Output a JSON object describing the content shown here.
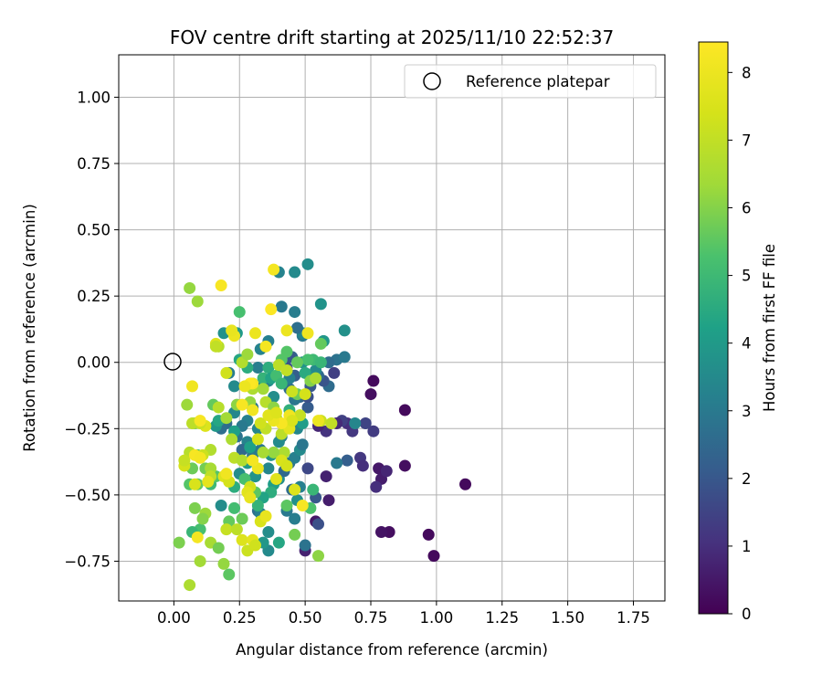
{
  "chart_data": {
    "type": "scatter",
    "title": "FOV centre drift starting at 2025/11/10 22:52:37",
    "xlabel": "Angular distance from reference (arcmin)",
    "ylabel": "Rotation from reference (arcmin)",
    "xlim": [
      -0.21,
      1.87
    ],
    "ylim": [
      -0.9,
      1.16
    ],
    "xticks": [
      "0.00",
      "0.25",
      "0.50",
      "0.75",
      "1.00",
      "1.25",
      "1.50",
      "1.75"
    ],
    "yticks": [
      "−0.75",
      "−0.50",
      "−0.25",
      "0.00",
      "0.25",
      "0.50",
      "0.75",
      "1.00"
    ],
    "grid": true,
    "legend": {
      "position": "top-right",
      "entries": [
        "Reference platepar"
      ]
    },
    "reference_point": {
      "x": 0.0,
      "y": 0.0,
      "marker": "open-circle"
    },
    "colorbar": {
      "label": "Hours from first FF file",
      "ticks": [
        "0",
        "1",
        "2",
        "3",
        "4",
        "5",
        "6",
        "7",
        "8"
      ],
      "range": [
        0,
        8.45
      ],
      "colormap": "viridis"
    },
    "points": [
      [
        0.88,
        -0.18,
        0.2
      ],
      [
        0.76,
        -0.07,
        0.2
      ],
      [
        0.75,
        -0.12,
        0.3
      ],
      [
        1.11,
        -0.46,
        0.2
      ],
      [
        0.97,
        -0.65,
        0.2
      ],
      [
        0.99,
        -0.73,
        0.2
      ],
      [
        0.82,
        -0.64,
        0.3
      ],
      [
        0.79,
        -0.64,
        0.4
      ],
      [
        0.88,
        -0.39,
        0.3
      ],
      [
        0.78,
        -0.4,
        0.5
      ],
      [
        0.79,
        -0.44,
        0.6
      ],
      [
        0.81,
        -0.41,
        0.8
      ],
      [
        0.77,
        -0.47,
        1.0
      ],
      [
        0.71,
        -0.36,
        1.2
      ],
      [
        0.72,
        -0.39,
        1.0
      ],
      [
        0.76,
        -0.26,
        1.3
      ],
      [
        0.73,
        -0.23,
        1.5
      ],
      [
        0.68,
        -0.26,
        1.2
      ],
      [
        0.66,
        -0.23,
        1.0
      ],
      [
        0.64,
        -0.22,
        1.4
      ],
      [
        0.62,
        -0.23,
        0.9
      ],
      [
        0.58,
        -0.26,
        1.1
      ],
      [
        0.55,
        -0.24,
        0.8
      ],
      [
        0.58,
        -0.43,
        0.7
      ],
      [
        0.59,
        -0.52,
        0.6
      ],
      [
        0.54,
        -0.6,
        0.5
      ],
      [
        0.5,
        -0.71,
        0.7
      ],
      [
        0.55,
        -0.61,
        1.8
      ],
      [
        0.54,
        -0.51,
        2.0
      ],
      [
        0.66,
        -0.37,
        2.2
      ],
      [
        0.62,
        -0.38,
        3.0
      ],
      [
        0.69,
        -0.23,
        3.4
      ],
      [
        0.51,
        -0.4,
        1.6
      ],
      [
        0.51,
        -0.17,
        2.1
      ],
      [
        0.48,
        -0.13,
        2.4
      ],
      [
        0.51,
        -0.13,
        1.8
      ],
      [
        0.52,
        -0.09,
        2.0
      ],
      [
        0.53,
        -0.06,
        2.3
      ],
      [
        0.59,
        -0.09,
        2.6
      ],
      [
        0.57,
        -0.07,
        1.9
      ],
      [
        0.61,
        -0.04,
        1.4
      ],
      [
        0.62,
        0.01,
        2.8
      ],
      [
        0.65,
        0.02,
        3.0
      ],
      [
        0.59,
        0.0,
        2.6
      ],
      [
        0.57,
        0.08,
        3.4
      ],
      [
        0.55,
        -0.05,
        2.5
      ],
      [
        0.54,
        -0.03,
        3.5
      ],
      [
        0.49,
        0.0,
        3.8
      ],
      [
        0.45,
        0.02,
        2.3
      ],
      [
        0.44,
        0.02,
        2.0
      ],
      [
        0.43,
        -0.02,
        1.8
      ],
      [
        0.46,
        -0.05,
        2.2
      ],
      [
        0.44,
        -0.1,
        2.6
      ],
      [
        0.46,
        -0.14,
        2.9
      ],
      [
        0.44,
        -0.06,
        3.2
      ],
      [
        0.49,
        0.1,
        3.0
      ],
      [
        0.49,
        0.11,
        3.4
      ],
      [
        0.47,
        0.13,
        2.7
      ],
      [
        0.46,
        0.19,
        3.1
      ],
      [
        0.41,
        0.21,
        3.0
      ],
      [
        0.4,
        0.34,
        3.3
      ],
      [
        0.46,
        0.34,
        3.5
      ],
      [
        0.51,
        0.37,
        3.6
      ],
      [
        0.56,
        0.22,
        3.8
      ],
      [
        0.57,
        0.08,
        3.9
      ],
      [
        0.65,
        0.12,
        3.7
      ],
      [
        0.36,
        0.08,
        3.2
      ],
      [
        0.33,
        0.05,
        3.3
      ],
      [
        0.32,
        -0.02,
        3.1
      ],
      [
        0.36,
        -0.07,
        3.5
      ],
      [
        0.38,
        -0.13,
        3.6
      ],
      [
        0.34,
        -0.09,
        3.0
      ],
      [
        0.3,
        -0.17,
        2.8
      ],
      [
        0.28,
        -0.22,
        3.2
      ],
      [
        0.32,
        -0.25,
        3.4
      ],
      [
        0.38,
        -0.21,
        2.6
      ],
      [
        0.41,
        -0.28,
        3.1
      ],
      [
        0.4,
        -0.3,
        3.5
      ],
      [
        0.37,
        -0.35,
        3.8
      ],
      [
        0.33,
        -0.33,
        2.9
      ],
      [
        0.3,
        -0.35,
        3.0
      ],
      [
        0.28,
        -0.3,
        3.3
      ],
      [
        0.26,
        -0.33,
        2.5
      ],
      [
        0.24,
        -0.28,
        2.8
      ],
      [
        0.26,
        -0.24,
        3.0
      ],
      [
        0.23,
        -0.19,
        3.4
      ],
      [
        0.2,
        -0.23,
        2.6
      ],
      [
        0.18,
        -0.25,
        2.7
      ],
      [
        0.16,
        -0.24,
        3.9
      ],
      [
        0.25,
        -0.42,
        3.6
      ],
      [
        0.27,
        -0.44,
        3.2
      ],
      [
        0.31,
        -0.43,
        3.0
      ],
      [
        0.36,
        -0.4,
        3.4
      ],
      [
        0.4,
        -0.44,
        3.6
      ],
      [
        0.42,
        -0.41,
        2.5
      ],
      [
        0.44,
        -0.38,
        2.8
      ],
      [
        0.46,
        -0.36,
        3.2
      ],
      [
        0.48,
        -0.33,
        3.5
      ],
      [
        0.49,
        -0.31,
        2.9
      ],
      [
        0.47,
        -0.25,
        3.4
      ],
      [
        0.49,
        -0.23,
        4.1
      ],
      [
        0.45,
        -0.48,
        2.6
      ],
      [
        0.43,
        -0.56,
        3.0
      ],
      [
        0.46,
        -0.59,
        3.1
      ],
      [
        0.47,
        -0.52,
        3.7
      ],
      [
        0.48,
        -0.47,
        3.2
      ],
      [
        0.5,
        -0.69,
        2.8
      ],
      [
        0.32,
        -0.56,
        2.7
      ],
      [
        0.33,
        -0.57,
        3.2
      ],
      [
        0.36,
        -0.64,
        3.6
      ],
      [
        0.36,
        -0.71,
        3.5
      ],
      [
        0.34,
        -0.68,
        3.9
      ],
      [
        0.4,
        -0.68,
        4.4
      ],
      [
        0.38,
        -0.46,
        4.1
      ],
      [
        0.37,
        -0.49,
        4.6
      ],
      [
        0.34,
        -0.51,
        4.3
      ],
      [
        0.31,
        -0.43,
        3.8
      ],
      [
        0.28,
        -0.38,
        4.0
      ],
      [
        0.29,
        -0.32,
        4.2
      ],
      [
        0.23,
        -0.26,
        4.2
      ],
      [
        0.18,
        -0.54,
        3.6
      ],
      [
        0.17,
        -0.22,
        4.4
      ],
      [
        0.21,
        -0.04,
        3.1
      ],
      [
        0.23,
        -0.09,
        3.5
      ],
      [
        0.25,
        0.01,
        4.4
      ],
      [
        0.24,
        0.11,
        4.0
      ],
      [
        0.19,
        0.11,
        3.7
      ],
      [
        0.25,
        0.19,
        5.2
      ],
      [
        0.28,
        -0.02,
        4.6
      ],
      [
        0.3,
        -0.08,
        5.0
      ],
      [
        0.34,
        -0.06,
        4.8
      ],
      [
        0.36,
        -0.02,
        4.6
      ],
      [
        0.37,
        -0.06,
        4.3
      ],
      [
        0.39,
        -0.05,
        5.1
      ],
      [
        0.41,
        -0.08,
        4.9
      ],
      [
        0.41,
        0.01,
        5.4
      ],
      [
        0.47,
        -0.12,
        5.7
      ],
      [
        0.5,
        -0.04,
        4.5
      ],
      [
        0.53,
        0.01,
        5.0
      ],
      [
        0.56,
        0.0,
        4.9
      ],
      [
        0.56,
        0.07,
        5.6
      ],
      [
        0.51,
        0.01,
        5.2
      ],
      [
        0.47,
        0.0,
        5.6
      ],
      [
        0.43,
        0.04,
        5.4
      ],
      [
        0.44,
        -0.18,
        4.7
      ],
      [
        0.48,
        -0.2,
        5.3
      ],
      [
        0.52,
        -0.07,
        6.0
      ],
      [
        0.53,
        -0.48,
        4.9
      ],
      [
        0.52,
        -0.55,
        5.3
      ],
      [
        0.46,
        -0.65,
        5.8
      ],
      [
        0.55,
        -0.73,
        6.1
      ],
      [
        0.43,
        -0.54,
        5.5
      ],
      [
        0.32,
        -0.54,
        4.8
      ],
      [
        0.31,
        -0.49,
        5.5
      ],
      [
        0.27,
        -0.44,
        5.2
      ],
      [
        0.23,
        -0.47,
        4.6
      ],
      [
        0.23,
        -0.55,
        5.1
      ],
      [
        0.26,
        -0.59,
        5.7
      ],
      [
        0.21,
        -0.6,
        5.6
      ],
      [
        0.14,
        -0.46,
        5.0
      ],
      [
        0.16,
        -0.43,
        5.4
      ],
      [
        0.12,
        -0.4,
        5.8
      ],
      [
        0.09,
        -0.35,
        5.1
      ],
      [
        0.07,
        -0.4,
        5.7
      ],
      [
        0.06,
        -0.46,
        5.4
      ],
      [
        0.09,
        -0.46,
        5.6
      ],
      [
        0.1,
        -0.63,
        5.2
      ],
      [
        0.07,
        -0.64,
        4.9
      ],
      [
        0.08,
        -0.55,
        5.9
      ],
      [
        0.12,
        -0.57,
        6.3
      ],
      [
        0.11,
        -0.59,
        6.0
      ],
      [
        0.14,
        -0.68,
        6.5
      ],
      [
        0.17,
        -0.7,
        5.8
      ],
      [
        0.19,
        -0.76,
        6.2
      ],
      [
        0.21,
        -0.8,
        5.5
      ],
      [
        0.1,
        -0.75,
        6.4
      ],
      [
        0.06,
        -0.84,
        6.6
      ],
      [
        0.02,
        -0.68,
        5.9
      ],
      [
        0.05,
        -0.16,
        6.3
      ],
      [
        0.08,
        -0.23,
        5.9
      ],
      [
        0.15,
        -0.16,
        5.6
      ],
      [
        0.17,
        -0.17,
        6.8
      ],
      [
        0.2,
        -0.21,
        6.4
      ],
      [
        0.22,
        -0.29,
        6.6
      ],
      [
        0.24,
        -0.16,
        6.1
      ],
      [
        0.23,
        -0.36,
        6.9
      ],
      [
        0.26,
        -0.37,
        6.7
      ],
      [
        0.29,
        -0.15,
        6.2
      ],
      [
        0.26,
        0.0,
        6.7
      ],
      [
        0.28,
        0.03,
        6.3
      ],
      [
        0.29,
        -0.09,
        6.9
      ],
      [
        0.3,
        -0.1,
        6.6
      ],
      [
        0.34,
        -0.1,
        6.4
      ],
      [
        0.35,
        -0.15,
        6.8
      ],
      [
        0.38,
        -0.17,
        6.1
      ],
      [
        0.39,
        -0.21,
        6.7
      ],
      [
        0.41,
        -0.27,
        6.9
      ],
      [
        0.42,
        -0.34,
        6.6
      ],
      [
        0.38,
        -0.34,
        6.2
      ],
      [
        0.34,
        -0.34,
        6.5
      ],
      [
        0.35,
        -0.25,
        7.0
      ],
      [
        0.33,
        -0.23,
        7.3
      ],
      [
        0.4,
        -0.01,
        6.9
      ],
      [
        0.43,
        -0.03,
        7.0
      ],
      [
        0.45,
        -0.11,
        7.2
      ],
      [
        0.48,
        -0.2,
        7.1
      ],
      [
        0.5,
        -0.12,
        7.4
      ],
      [
        0.54,
        -0.06,
        6.6
      ],
      [
        0.56,
        -0.22,
        7.2
      ],
      [
        0.6,
        -0.23,
        7.0
      ],
      [
        0.17,
        0.06,
        6.8
      ],
      [
        0.16,
        0.07,
        7.6
      ],
      [
        0.2,
        -0.04,
        7.3
      ],
      [
        0.12,
        -0.24,
        7.6
      ],
      [
        0.1,
        -0.23,
        7.2
      ],
      [
        0.07,
        -0.23,
        6.9
      ],
      [
        0.04,
        -0.39,
        7.4
      ],
      [
        0.06,
        -0.34,
        6.8
      ],
      [
        0.04,
        -0.37,
        7.1
      ],
      [
        0.08,
        -0.46,
        7.5
      ],
      [
        0.14,
        -0.33,
        6.7
      ],
      [
        0.11,
        -0.35,
        7.2
      ],
      [
        0.14,
        -0.4,
        6.5
      ],
      [
        0.14,
        -0.43,
        7.0
      ],
      [
        0.19,
        -0.43,
        7.6
      ],
      [
        0.21,
        -0.45,
        7.4
      ],
      [
        0.2,
        -0.63,
        7.1
      ],
      [
        0.24,
        -0.63,
        6.9
      ],
      [
        0.26,
        -0.67,
        7.6
      ],
      [
        0.28,
        -0.71,
        7.2
      ],
      [
        0.3,
        -0.67,
        7.8
      ],
      [
        0.31,
        -0.69,
        7.3
      ],
      [
        0.33,
        -0.6,
        7.5
      ],
      [
        0.35,
        -0.58,
        7.9
      ],
      [
        0.39,
        -0.44,
        7.7
      ],
      [
        0.41,
        -0.37,
        7.5
      ],
      [
        0.43,
        -0.39,
        7.4
      ],
      [
        0.46,
        -0.48,
        7.6
      ],
      [
        0.49,
        -0.54,
        8.3
      ],
      [
        0.29,
        -0.47,
        7.3
      ],
      [
        0.28,
        -0.49,
        7.7
      ],
      [
        0.29,
        -0.51,
        7.9
      ],
      [
        0.32,
        -0.4,
        8.0
      ],
      [
        0.3,
        -0.37,
        8.2
      ],
      [
        0.32,
        -0.29,
        7.4
      ],
      [
        0.44,
        -0.2,
        8.1
      ],
      [
        0.44,
        -0.25,
        7.8
      ],
      [
        0.45,
        -0.22,
        7.5
      ],
      [
        0.41,
        -0.23,
        8.3
      ],
      [
        0.38,
        -0.22,
        8.0
      ],
      [
        0.36,
        -0.2,
        7.7
      ],
      [
        0.39,
        -0.19,
        7.6
      ],
      [
        0.3,
        -0.08,
        8.2
      ],
      [
        0.29,
        -0.08,
        8.4
      ],
      [
        0.27,
        -0.09,
        8.0
      ],
      [
        0.26,
        -0.16,
        8.3
      ],
      [
        0.3,
        -0.18,
        8.1
      ],
      [
        0.35,
        0.06,
        8.2
      ],
      [
        0.37,
        0.2,
        8.4
      ],
      [
        0.38,
        0.35,
        8.2
      ],
      [
        0.43,
        0.12,
        8.0
      ],
      [
        0.51,
        0.11,
        8.1
      ],
      [
        0.55,
        -0.22,
        8.0
      ],
      [
        0.31,
        0.11,
        8.0
      ],
      [
        0.18,
        0.29,
        8.3
      ],
      [
        0.23,
        0.1,
        8.0
      ],
      [
        0.22,
        0.12,
        7.9
      ],
      [
        0.13,
        -0.45,
        7.8
      ],
      [
        0.07,
        -0.09,
        8.1
      ],
      [
        0.1,
        -0.22,
        8.3
      ],
      [
        0.08,
        -0.35,
        8.3
      ],
      [
        0.1,
        -0.36,
        8.2
      ],
      [
        0.09,
        -0.66,
        8.2
      ],
      [
        0.2,
        -0.42,
        8.1
      ],
      [
        0.06,
        0.28,
        6.2
      ],
      [
        0.09,
        0.23,
        6.3
      ],
      [
        0.16,
        0.06,
        7.0
      ]
    ]
  }
}
